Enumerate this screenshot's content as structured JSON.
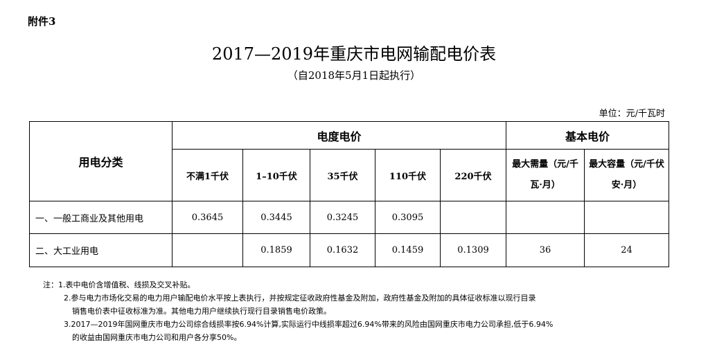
{
  "attachment": "附件3",
  "title": "2017—2019年重庆市电网输配电价表",
  "subtitle": "（自2018年5月1日起执行）",
  "unit": "单位：元/千瓦时",
  "table": {
    "category_header": "用电分类",
    "energy_header": "电度电价",
    "basic_header": "基本电价",
    "columns": [
      "不满1千伏",
      "1–10千伏",
      "35千伏",
      "110千伏",
      "220千伏",
      "最大需量（元/千瓦·月）",
      "最大容量（元/千伏安·月）"
    ],
    "rows": [
      {
        "label": "一、一般工商业及其他用电",
        "values": [
          "0.3645",
          "0.3445",
          "0.3245",
          "0.3095",
          "",
          "",
          ""
        ]
      },
      {
        "label": "二、大工业用电",
        "values": [
          "",
          "0.1859",
          "0.1632",
          "0.1459",
          "0.1309",
          "36",
          "24"
        ]
      }
    ]
  },
  "notes": {
    "n1": "注：1.表中电价含增值税、线损及交叉补贴。",
    "n2a": "2.参与电力市场化交易的电力用户输配电价水平按上表执行，并按规定征收政府性基金及附加，政府性基金及附加的具体征收标准以现行目录",
    "n2b": "销售电价表中征收标准为准。其他电力用户继续执行现行目录销售电价政策。",
    "n3a": "3.2017—2019年国网重庆市电力公司综合线损率按6.94%计算,实际运行中线损率超过6.94%带来的风险由国网重庆市电力公司承担,低于6.94%",
    "n3b": "的收益由国网重庆市电力公司和用户各分享50%。"
  }
}
